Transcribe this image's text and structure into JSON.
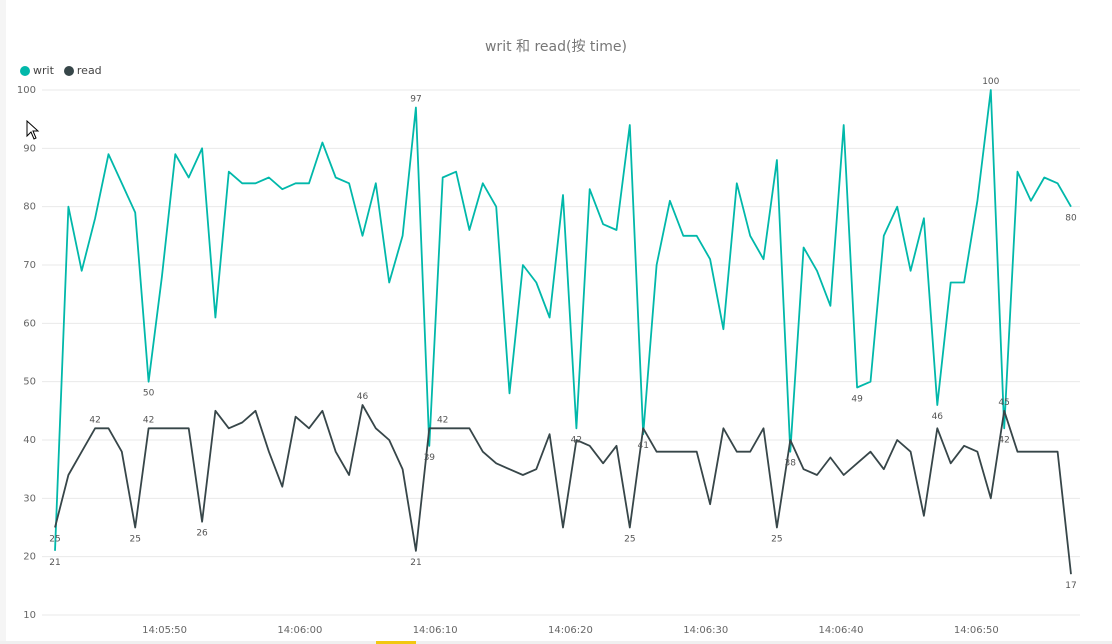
{
  "chart_data": {
    "type": "line",
    "title": "writ 和 read(按 time)",
    "legend_position": "top-left",
    "grid": true,
    "ylim": [
      10,
      100
    ],
    "y_ticks": [
      10,
      20,
      30,
      40,
      50,
      60,
      70,
      80,
      90,
      100
    ],
    "x_tick_labels": [
      "14:05:50",
      "14:06:00",
      "14:06:10",
      "14:06:20",
      "14:06:30",
      "14:06:40",
      "14:06:50"
    ],
    "x_tick_seconds": [
      10,
      20,
      30,
      40,
      50,
      60,
      70
    ],
    "x_start_seconds": 1.9,
    "x_end_seconds": 77.0,
    "series": [
      {
        "name": "writ",
        "color": "#01b8aa",
        "values": [
          21,
          80,
          69,
          78,
          89,
          84,
          79,
          50,
          68,
          89,
          85,
          90,
          61,
          86,
          84,
          84,
          85,
          83,
          84,
          84,
          91,
          85,
          84,
          75,
          84,
          67,
          75,
          97,
          39,
          85,
          86,
          76,
          84,
          80,
          48,
          70,
          67,
          61,
          82,
          42,
          83,
          77,
          76,
          94,
          41,
          70,
          81,
          75,
          75,
          71,
          59,
          84,
          75,
          71,
          88,
          38,
          73,
          69,
          63,
          94,
          49,
          50,
          75,
          80,
          69,
          78,
          46,
          67,
          67,
          81,
          100,
          42,
          86,
          81,
          85,
          84,
          80
        ],
        "labels": [
          {
            "index": 0,
            "text": "21"
          },
          {
            "index": 7,
            "text": "50"
          },
          {
            "index": 27,
            "text": "97"
          },
          {
            "index": 28,
            "text": "39"
          },
          {
            "index": 39,
            "text": "42"
          },
          {
            "index": 44,
            "text": "41"
          },
          {
            "index": 55,
            "text": "38"
          },
          {
            "index": 60,
            "text": "49"
          },
          {
            "index": 66,
            "text": "46"
          },
          {
            "index": 70,
            "text": "100"
          },
          {
            "index": 71,
            "text": "42"
          },
          {
            "index": 76,
            "text": "80"
          }
        ]
      },
      {
        "name": "read",
        "color": "#374649",
        "values": [
          25,
          34,
          38,
          42,
          42,
          38,
          25,
          42,
          42,
          42,
          42,
          26,
          45,
          42,
          43,
          45,
          38,
          32,
          44,
          42,
          45,
          38,
          34,
          46,
          42,
          40,
          35,
          21,
          42,
          42,
          42,
          42,
          38,
          36,
          35,
          34,
          35,
          41,
          25,
          40,
          39,
          36,
          39,
          25,
          42,
          38,
          38,
          38,
          38,
          29,
          42,
          38,
          38,
          42,
          25,
          40,
          35,
          34,
          37,
          34,
          36,
          38,
          35,
          40,
          38,
          27,
          42,
          36,
          39,
          38,
          30,
          45,
          38,
          38,
          38,
          38,
          17
        ],
        "labels": [
          {
            "index": 0,
            "text": "25"
          },
          {
            "index": 3,
            "text": "42"
          },
          {
            "index": 6,
            "text": "25"
          },
          {
            "index": 7,
            "text": "42"
          },
          {
            "index": 11,
            "text": "26"
          },
          {
            "index": 23,
            "text": "46"
          },
          {
            "index": 27,
            "text": "21"
          },
          {
            "index": 29,
            "text": "42"
          },
          {
            "index": 43,
            "text": "25"
          },
          {
            "index": 54,
            "text": "25"
          },
          {
            "index": 71,
            "text": "45"
          },
          {
            "index": 76,
            "text": "17"
          }
        ]
      }
    ]
  }
}
